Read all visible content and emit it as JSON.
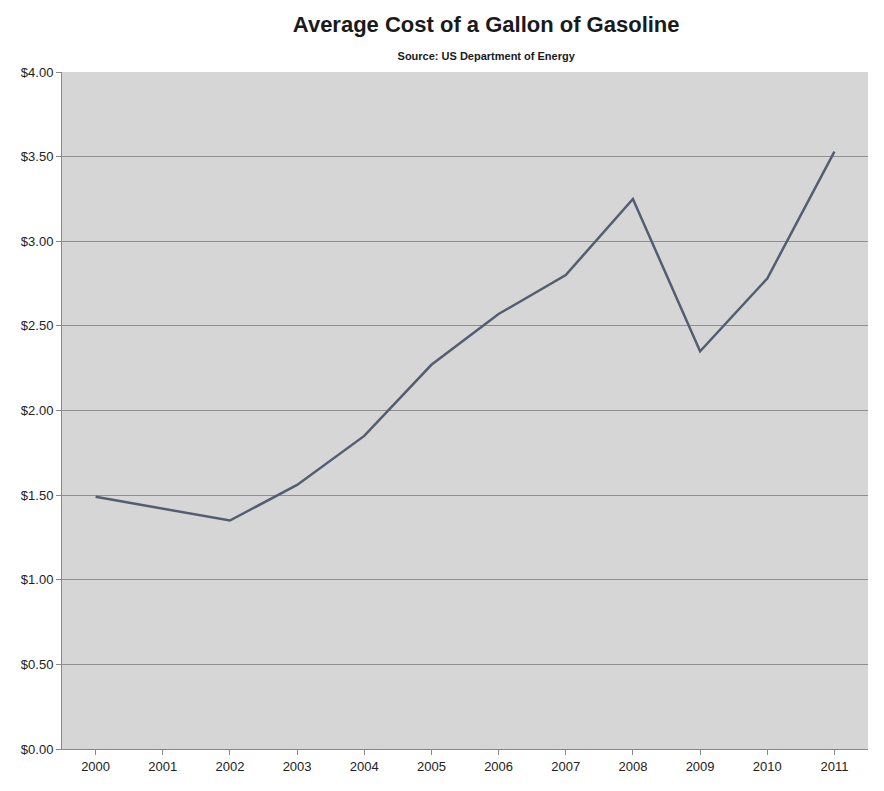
{
  "chart_data": {
    "type": "line",
    "title": "Average Cost of a Gallon of Gasoline",
    "subtitle": "Source: US Department of Energy",
    "categories": [
      "2000",
      "2001",
      "2002",
      "2003",
      "2004",
      "2005",
      "2006",
      "2007",
      "2008",
      "2009",
      "2010",
      "2011"
    ],
    "values": [
      1.49,
      1.42,
      1.35,
      1.56,
      1.85,
      2.27,
      2.57,
      2.8,
      3.25,
      2.35,
      2.78,
      3.53
    ],
    "color": "#545e72",
    "ylim": [
      0,
      4
    ],
    "yticks": [
      {
        "value": 0,
        "label": "$0.00"
      },
      {
        "value": 0.5,
        "label": "$0.50"
      },
      {
        "value": 1,
        "label": "$1.00"
      },
      {
        "value": 1.5,
        "label": "$1.50"
      },
      {
        "value": 2,
        "label": "$2.00"
      },
      {
        "value": 2.5,
        "label": "$2.50"
      },
      {
        "value": 3,
        "label": "$3.00"
      },
      {
        "value": 3.5,
        "label": "$3.50"
      },
      {
        "value": 4,
        "label": "$4.00"
      }
    ],
    "grid": true
  }
}
